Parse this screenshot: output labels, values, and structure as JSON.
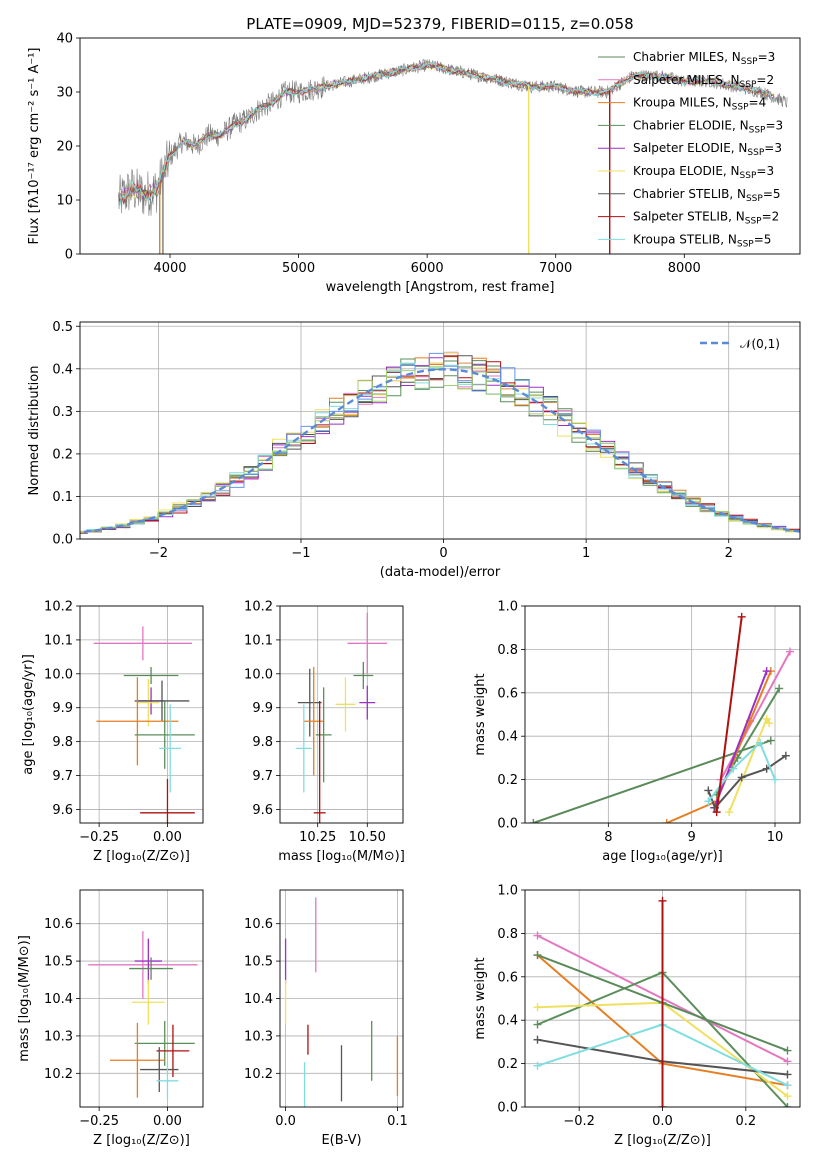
{
  "page_title": "PLATE=0909, MJD=52379, FIBERID=0115, z=0.058",
  "series_colors": {
    "Chabrier MILES": "#5a8a5a",
    "Salpeter MILES": "#e377c2",
    "Kroupa MILES": "#e67e22",
    "Chabrier ELODIE": "#5b8f5b",
    "Salpeter ELODIE": "#9b30c8",
    "Kroupa ELODIE": "#f0e060",
    "Chabrier STELIB": "#555555",
    "Salpeter STELIB": "#b01010",
    "Kroupa STELIB": "#80dde0"
  },
  "chart_data": [
    {
      "type": "line",
      "title": "PLATE=0909, MJD=52379, FIBERID=0115, z=0.058",
      "xlabel": "wavelength [Angstrom, rest frame]",
      "ylabel": "Flux [fλ10⁻¹⁷ erg cm⁻² s⁻¹ A⁻¹]",
      "xlim": [
        3300,
        8900
      ],
      "ylim": [
        0,
        40
      ],
      "xticks": [
        "4000",
        "5000",
        "6000",
        "7000",
        "8000"
      ],
      "yticks": [
        "0",
        "10",
        "20",
        "30",
        "40"
      ],
      "legend_position": "right",
      "legend": [
        "Chabrier MILES, N_SSP=3",
        "Salpeter MILES, N_SSP=2",
        "Kroupa MILES, N_SSP=4",
        "Chabrier ELODIE, N_SSP=3",
        "Salpeter ELODIE, N_SSP=3",
        "Kroupa ELODIE, N_SSP=3",
        "Chabrier STELIB, N_SSP=5",
        "Salpeter STELIB, N_SSP=2",
        "Kroupa STELIB, N_SSP=5"
      ],
      "continuum": {
        "x": [
          3600,
          3700,
          3800,
          3900,
          4000,
          4100,
          4200,
          4300,
          4400,
          4500,
          4600,
          4700,
          4800,
          4900,
          5000,
          5200,
          5400,
          5600,
          5800,
          6000,
          6200,
          6400,
          6600,
          6800,
          7000,
          7200,
          7400,
          7600,
          7800,
          8000,
          8200,
          8400,
          8600,
          8800
        ],
        "y": [
          10,
          12,
          11,
          12,
          18,
          21,
          20,
          22,
          22,
          24,
          25,
          27,
          28,
          30,
          30,
          31,
          32,
          33,
          34,
          35,
          34,
          33,
          32,
          31,
          31,
          30,
          30,
          33,
          33,
          32,
          32,
          31,
          30,
          28
        ]
      }
    },
    {
      "type": "line",
      "xlabel": "(data-model)/error",
      "ylabel": "Normed distribution",
      "xlim": [
        -2.55,
        2.5
      ],
      "ylim": [
        0,
        0.51
      ],
      "xticks": [
        "−2",
        "−1",
        "0",
        "1",
        "2"
      ],
      "yticks": [
        "0.0",
        "0.1",
        "0.2",
        "0.3",
        "0.4",
        "0.5"
      ],
      "legend": [
        "𝒩(0,1)"
      ],
      "legend_position": "top-right",
      "bin_width": 0.1
    },
    {
      "type": "scatter",
      "xlabel": "Z [log₁₀(Z/Z⊙)]",
      "ylabel": "age  [log₁₀(age/yr)]",
      "xlim": [
        -0.32,
        0.13
      ],
      "ylim": [
        9.56,
        10.2
      ],
      "xticks": [
        "−0.25",
        "0.00"
      ],
      "yticks": [
        "9.6",
        "9.7",
        "9.8",
        "9.9",
        "10.0",
        "10.1",
        "10.2"
      ],
      "series": [
        {
          "name": "Salpeter MILES",
          "x": -0.09,
          "y": 10.09,
          "xerr": 0.18,
          "yerr": 0.05
        },
        {
          "name": "Chabrier MILES",
          "x": -0.06,
          "y": 9.995,
          "xerr": 0.1,
          "yerr": 0.025
        },
        {
          "name": "Salpeter ELODIE",
          "x": -0.06,
          "y": 9.92,
          "xerr": 0.05,
          "yerr": 0.04
        },
        {
          "name": "Kroupa ELODIE",
          "x": -0.07,
          "y": 9.915,
          "xerr": 0.04,
          "yerr": 0.07
        },
        {
          "name": "Chabrier STELIB",
          "x": -0.02,
          "y": 9.92,
          "xerr": 0.1,
          "yerr": 0.06
        },
        {
          "name": "Kroupa MILES",
          "x": -0.11,
          "y": 9.86,
          "xerr": 0.15,
          "yerr": 0.13
        },
        {
          "name": "Chabrier ELODIE",
          "x": -0.01,
          "y": 9.82,
          "xerr": 0.11,
          "yerr": 0.1
        },
        {
          "name": "Kroupa STELIB",
          "x": 0.01,
          "y": 9.78,
          "xerr": 0.04,
          "yerr": 0.13
        },
        {
          "name": "Salpeter STELIB",
          "x": 0.0,
          "y": 9.59,
          "xerr": 0.1,
          "yerr": 0.1
        }
      ]
    },
    {
      "type": "scatter",
      "xlabel": "mass [log₁₀(M/M⊙)]",
      "xlim": [
        10.06,
        10.68
      ],
      "ylim": [
        9.56,
        10.2
      ],
      "xticks": [
        "10.25",
        "10.50"
      ],
      "yticks": [
        "9.6",
        "9.7",
        "9.8",
        "9.9",
        "10.0",
        "10.1",
        "10.2"
      ],
      "series": [
        {
          "name": "Salpeter MILES",
          "x": 10.5,
          "y": 10.09,
          "xerr": 0.1,
          "yerr": 0.09
        },
        {
          "name": "Chabrier MILES",
          "x": 10.48,
          "y": 9.995,
          "xerr": 0.05,
          "yerr": 0.04
        },
        {
          "name": "Salpeter ELODIE",
          "x": 10.5,
          "y": 9.915,
          "xerr": 0.04,
          "yerr": 0.05
        },
        {
          "name": "Kroupa ELODIE",
          "x": 10.39,
          "y": 9.91,
          "xerr": 0.05,
          "yerr": 0.08
        },
        {
          "name": "Chabrier STELIB",
          "x": 10.21,
          "y": 9.915,
          "xerr": 0.06,
          "yerr": 0.1
        },
        {
          "name": "Kroupa MILES",
          "x": 10.23,
          "y": 9.86,
          "xerr": 0.05,
          "yerr": 0.16
        },
        {
          "name": "Chabrier ELODIE",
          "x": 10.28,
          "y": 9.82,
          "xerr": 0.04,
          "yerr": 0.14
        },
        {
          "name": "Kroupa STELIB",
          "x": 10.18,
          "y": 9.78,
          "xerr": 0.04,
          "yerr": 0.13
        },
        {
          "name": "Salpeter STELIB",
          "x": 10.26,
          "y": 9.59,
          "xerr": 0.03,
          "yerr": 0.33
        }
      ]
    },
    {
      "type": "line",
      "xlabel": "age  [log₁₀(age/yr)]",
      "ylabel": "mass weight",
      "xlim": [
        7.0,
        10.3
      ],
      "ylim": [
        0,
        1.0
      ],
      "xticks": [
        "8",
        "9",
        "10"
      ],
      "yticks": [
        "0.0",
        "0.2",
        "0.4",
        "0.6",
        "0.8",
        "1.0"
      ],
      "series": [
        {
          "name": "Chabrier MILES",
          "x": [
            7.1,
            9.95
          ],
          "y": [
            0.0,
            0.38
          ]
        },
        {
          "name": "Chabrier ELODIE",
          "x": [
            9.3,
            9.55,
            10.05
          ],
          "y": [
            0.13,
            0.3,
            0.62
          ]
        },
        {
          "name": "Salpeter MILES",
          "x": [
            9.35,
            10.18
          ],
          "y": [
            0.2,
            0.79
          ]
        },
        {
          "name": "Kroupa MILES",
          "x": [
            8.7,
            9.3,
            9.7,
            9.95
          ],
          "y": [
            0.0,
            0.1,
            0.47,
            0.7
          ]
        },
        {
          "name": "Kroupa ELODIE",
          "x": [
            9.45,
            9.9,
            9.93
          ],
          "y": [
            0.05,
            0.48,
            0.46
          ]
        },
        {
          "name": "Salpeter ELODIE",
          "x": [
            9.27,
            9.9
          ],
          "y": [
            0.07,
            0.7
          ]
        },
        {
          "name": "Chabrier STELIB",
          "x": [
            9.2,
            9.28,
            9.6,
            9.9,
            10.13
          ],
          "y": [
            0.15,
            0.07,
            0.21,
            0.25,
            0.31
          ]
        },
        {
          "name": "Kroupa STELIB",
          "x": [
            9.2,
            9.5,
            9.82,
            10.0
          ],
          "y": [
            0.1,
            0.25,
            0.37,
            0.2
          ]
        },
        {
          "name": "Salpeter STELIB",
          "x": [
            9.3,
            9.6
          ],
          "y": [
            0.05,
            0.95
          ]
        }
      ]
    },
    {
      "type": "scatter",
      "xlabel": "Z [log₁₀(Z/Z⊙)]",
      "ylabel": "mass [log₁₀(M/M⊙)]",
      "xlim": [
        -0.32,
        0.13
      ],
      "ylim": [
        10.11,
        10.69
      ],
      "xticks": [
        "−0.25",
        "0.00"
      ],
      "yticks": [
        "10.2",
        "10.3",
        "10.4",
        "10.5",
        "10.6"
      ],
      "series": [
        {
          "name": "Salpeter MILES",
          "x": -0.09,
          "y": 10.49,
          "xerr": 0.2,
          "yerr": 0.09
        },
        {
          "name": "Salpeter ELODIE",
          "x": -0.07,
          "y": 10.5,
          "xerr": 0.05,
          "yerr": 0.06
        },
        {
          "name": "Chabrier MILES",
          "x": -0.06,
          "y": 10.48,
          "xerr": 0.08,
          "yerr": 0.03
        },
        {
          "name": "Kroupa ELODIE",
          "x": -0.07,
          "y": 10.39,
          "xerr": 0.06,
          "yerr": 0.06
        },
        {
          "name": "Chabrier ELODIE",
          "x": -0.01,
          "y": 10.28,
          "xerr": 0.11,
          "yerr": 0.06
        },
        {
          "name": "Salpeter STELIB",
          "x": 0.02,
          "y": 10.26,
          "xerr": 0.06,
          "yerr": 0.07
        },
        {
          "name": "Kroupa MILES",
          "x": -0.11,
          "y": 10.235,
          "xerr": 0.1,
          "yerr": 0.1
        },
        {
          "name": "Chabrier STELIB",
          "x": -0.03,
          "y": 10.21,
          "xerr": 0.07,
          "yerr": 0.06
        },
        {
          "name": "Kroupa STELIB",
          "x": 0.0,
          "y": 10.18,
          "xerr": 0.04,
          "yerr": 0.05
        }
      ]
    },
    {
      "type": "scatter",
      "xlabel": "E(B-V)",
      "xlim": [
        -0.005,
        0.105
      ],
      "ylim": [
        10.11,
        10.69
      ],
      "xticks": [
        "0.0",
        "0.1"
      ],
      "yticks": [
        "10.2",
        "10.3",
        "10.4",
        "10.5",
        "10.6"
      ],
      "series": [
        {
          "name": "Salpeter MILES",
          "x": 0.027,
          "y": 10.57,
          "yerr": 0.1
        },
        {
          "name": "Salpeter ELODIE",
          "x": 0.0,
          "y": 10.5,
          "yerr": 0.06
        },
        {
          "name": "Kroupa ELODIE",
          "x": 0.0,
          "y": 10.39,
          "yerr": 0.06
        },
        {
          "name": "Salpeter STELIB",
          "x": 0.02,
          "y": 10.29,
          "yerr": 0.04
        },
        {
          "name": "Chabrier ELODIE",
          "x": 0.077,
          "y": 10.26,
          "yerr": 0.08
        },
        {
          "name": "Chabrier STELIB",
          "x": 0.05,
          "y": 10.2,
          "yerr": 0.075
        },
        {
          "name": "Kroupa STELIB",
          "x": 0.017,
          "y": 10.17,
          "yerr": 0.06
        },
        {
          "name": "Kroupa MILES",
          "x": 0.1,
          "y": 10.22,
          "yerr": 0.08
        }
      ]
    },
    {
      "type": "line",
      "xlabel": "Z [log₁₀(Z/Z⊙)]",
      "ylabel": "mass weight",
      "xlim": [
        -0.33,
        0.33
      ],
      "ylim": [
        0,
        1.0
      ],
      "xticks": [
        "−0.2",
        "0.0",
        "0.2"
      ],
      "yticks": [
        "0.0",
        "0.2",
        "0.4",
        "0.6",
        "0.8",
        "1.0"
      ],
      "series": [
        {
          "name": "Salpeter MILES",
          "x": [
            -0.3,
            0.3
          ],
          "y": [
            0.79,
            0.21
          ]
        },
        {
          "name": "Kroupa MILES",
          "x": [
            -0.3,
            0.0,
            0.3
          ],
          "y": [
            0.7,
            0.2,
            0.1
          ]
        },
        {
          "name": "Chabrier ELODIE",
          "x": [
            -0.3,
            0.0,
            0.3
          ],
          "y": [
            0.38,
            0.62,
            0.0
          ]
        },
        {
          "name": "Kroupa ELODIE",
          "x": [
            -0.3,
            0.0,
            0.3
          ],
          "y": [
            0.46,
            0.48,
            0.05
          ]
        },
        {
          "name": "Chabrier MILES",
          "x": [
            -0.3,
            0.0,
            0.3
          ],
          "y": [
            0.7,
            0.48,
            0.26
          ]
        },
        {
          "name": "Chabrier STELIB",
          "x": [
            -0.3,
            0.0,
            0.3
          ],
          "y": [
            0.31,
            0.21,
            0.15
          ]
        },
        {
          "name": "Kroupa STELIB",
          "x": [
            -0.3,
            0.0,
            0.3
          ],
          "y": [
            0.19,
            0.38,
            0.1
          ]
        },
        {
          "name": "Salpeter STELIB",
          "x": [
            0.0,
            0.0
          ],
          "y": [
            0.0,
            0.95
          ]
        }
      ]
    }
  ]
}
